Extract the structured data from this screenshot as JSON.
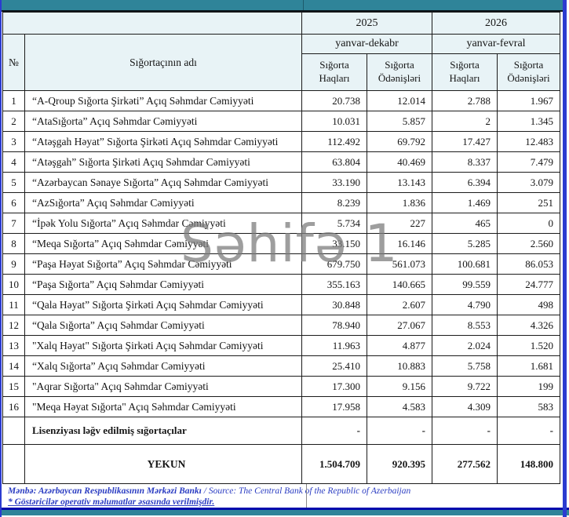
{
  "watermark": "Səhifə 1",
  "header": {
    "no": "№",
    "name": "Sığortaçının adı",
    "year_2025": "2025",
    "year_2026": "2026",
    "period_2025": "yanvar-dekabr",
    "period_2026": "yanvar-fevral",
    "premiums": "Sığorta Haqları",
    "payments": "Sığorta Ödənişləri"
  },
  "rows": [
    {
      "no": "1",
      "name": "“A-Qroup Sığorta Şirkəti” Açıq Səhmdar Cəmiyyəti",
      "values": [
        "20.738",
        "12.014",
        "2.788",
        "1.967"
      ]
    },
    {
      "no": "2",
      "name": "“AtaSığorta” Açıq Səhmdar Cəmiyyəti",
      "values": [
        "10.031",
        "5.857",
        "2",
        "1.345"
      ]
    },
    {
      "no": "3",
      "name": "“Atəşgah Həyat” Sığorta Şirkəti Açıq Səhmdar Cəmiyyəti",
      "values": [
        "112.492",
        "69.792",
        "17.427",
        "12.483"
      ]
    },
    {
      "no": "4",
      "name": "“Atəşgah” Sığorta Şirkəti Açıq Səhmdar Cəmiyyəti",
      "values": [
        "63.804",
        "40.469",
        "8.337",
        "7.479"
      ]
    },
    {
      "no": "5",
      "name": "“Azərbaycan Sənaye Sığorta” Açıq Səhmdar Cəmiyyəti",
      "values": [
        "33.190",
        "13.143",
        "6.394",
        "3.079"
      ]
    },
    {
      "no": "6",
      "name": "“AzSığorta” Açıq Səhmdar Cəmiyyəti",
      "values": [
        "8.239",
        "1.836",
        "1.469",
        "251"
      ]
    },
    {
      "no": "7",
      "name": "“İpək Yolu Sığorta” Açıq Səhmdar Cəmiyyəti",
      "values": [
        "5.734",
        "227",
        "465",
        "0"
      ]
    },
    {
      "no": "8",
      "name": "“Meqa Sığorta” Açıq Səhmdar Cəmiyyəti",
      "values": [
        "33.150",
        "16.146",
        "5.285",
        "2.560"
      ]
    },
    {
      "no": "9",
      "name": "“Paşa Həyat Sığorta” Açıq Səhmdar Cəmiyyəti",
      "values": [
        "679.750",
        "561.073",
        "100.681",
        "86.053"
      ]
    },
    {
      "no": "10",
      "name": "“Paşa Sığorta” Açıq Səhmdar Cəmiyyəti",
      "values": [
        "355.163",
        "140.665",
        "99.559",
        "24.777"
      ]
    },
    {
      "no": "11",
      "name": "“Qala Həyat” Sığorta Şirkəti Açıq Səhmdar Cəmiyyəti",
      "values": [
        "30.848",
        "2.607",
        "4.790",
        "498"
      ]
    },
    {
      "no": "12",
      "name": "“Qala Sığorta” Açıq Səhmdar Cəmiyyəti",
      "values": [
        "78.940",
        "27.067",
        "8.553",
        "4.326"
      ]
    },
    {
      "no": "13",
      "name": "\"Xalq Həyat\" Sığorta Şirkəti Açıq Səhmdar Cəmiyyəti",
      "values": [
        "11.963",
        "4.877",
        "2.024",
        "1.520"
      ]
    },
    {
      "no": "14",
      "name": "“Xalq Sığorta” Açıq Səhmdar Cəmiyyəti",
      "values": [
        "25.410",
        "10.883",
        "5.758",
        "1.681"
      ]
    },
    {
      "no": "15",
      "name": "\"Aqrar Sığorta\" Açıq Səhmdar Cəmiyyəti",
      "values": [
        "17.300",
        "9.156",
        "9.722",
        "199"
      ]
    },
    {
      "no": "16",
      "name": "\"Meqa Həyat Sığorta\" Açıq Səhmdar Cəmiyyəti",
      "values": [
        "17.958",
        "4.583",
        "4.309",
        "583"
      ]
    }
  ],
  "revoked_row": {
    "name": "Lisenziyası ləğv edilmiş sığortaçılar",
    "values": [
      "-",
      "-",
      "-",
      "-"
    ]
  },
  "total_row": {
    "name": "YEKUN",
    "values": [
      "1.504.709",
      "920.395",
      "277.562",
      "148.800"
    ]
  },
  "footer": {
    "source_az": "Mənbə: Azərbaycan Respublikasının Mərkəzi Bankı",
    "separator": " / ",
    "source_en": "Source: The Central Bank of the Republic of Azerbaijan",
    "note": "* Göstəricilər operativ məlumatlar əsasında verilmişdir."
  },
  "colors": {
    "teal_band": "#2f8499",
    "header_cell_bg": "#e8f3f6",
    "page_frame_blue": "#2b3bd0",
    "navy_rule": "#0009ad",
    "footer_text_blue": "#2a3cc2",
    "watermark_gray": "#7d7d7d"
  }
}
